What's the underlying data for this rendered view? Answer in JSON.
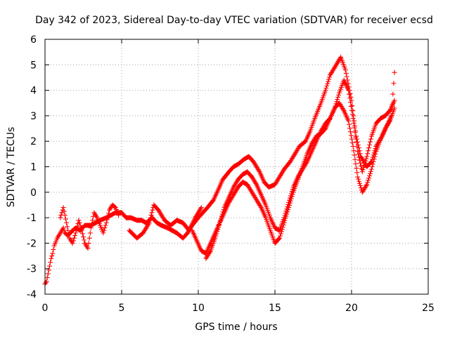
{
  "chart_data": {
    "type": "scatter",
    "title": "Day 342 of 2023, Sidereal Day-to-day VTEC variation (SDTVAR) for receiver ecsd",
    "xlabel": "GPS time / hours",
    "ylabel": "SDTVAR / TECUs",
    "xlim": [
      0,
      25
    ],
    "ylim": [
      -4,
      6
    ],
    "xticks": [
      "0",
      "5",
      "10",
      "15",
      "20",
      "25"
    ],
    "yticks": [
      "-4",
      "-3",
      "-2",
      "-1",
      "0",
      "1",
      "2",
      "3",
      "4",
      "5",
      "6"
    ],
    "grid": true,
    "marker": "+",
    "color": "#ff0000",
    "series": [
      {
        "x": [
          0.0,
          0.1,
          0.2,
          0.3,
          0.4,
          0.5,
          0.6,
          0.8,
          1.0,
          1.2,
          1.3,
          1.5,
          1.8,
          2.0,
          2.3,
          2.6,
          3.0,
          3.3,
          3.6,
          4.0,
          4.3,
          4.6,
          5.0,
          5.3,
          5.6,
          6.0,
          6.3,
          6.6,
          7.0,
          7.3,
          7.6,
          8.0,
          8.3,
          8.6,
          9.0,
          9.3,
          9.6,
          10.0,
          10.3,
          10.6,
          11.0,
          11.3,
          11.6,
          12.0,
          12.3,
          12.6,
          13.0,
          13.3,
          13.6,
          14.0,
          14.3,
          14.6,
          15.0,
          15.3,
          15.6,
          16.0,
          16.3,
          16.6,
          17.0,
          17.3,
          17.6,
          18.0,
          18.3,
          18.6,
          19.0,
          19.3,
          19.6,
          20.0,
          20.3,
          20.6,
          21.0,
          21.3,
          21.6,
          22.0,
          22.3,
          22.6,
          22.8
        ],
        "y": [
          -3.6,
          -3.5,
          -3.2,
          -2.9,
          -2.6,
          -2.4,
          -2.1,
          -1.8,
          -1.6,
          -1.4,
          -1.6,
          -1.7,
          -1.5,
          -1.4,
          -1.5,
          -1.3,
          -1.3,
          -1.2,
          -1.1,
          -1.0,
          -0.9,
          -0.8,
          -0.8,
          -1.0,
          -1.0,
          -1.1,
          -1.1,
          -1.2,
          -1.0,
          -1.2,
          -1.3,
          -1.4,
          -1.5,
          -1.6,
          -1.8,
          -1.6,
          -1.3,
          -1.0,
          -0.8,
          -0.6,
          -0.3,
          0.1,
          0.5,
          0.8,
          1.0,
          1.1,
          1.3,
          1.4,
          1.2,
          0.8,
          0.4,
          0.2,
          0.3,
          0.6,
          0.9,
          1.2,
          1.5,
          1.8,
          2.0,
          2.4,
          2.9,
          3.5,
          4.0,
          4.6,
          5.0,
          5.3,
          4.8,
          3.6,
          2.2,
          1.4,
          1.0,
          1.2,
          1.8,
          2.2,
          2.6,
          3.0,
          4.7
        ]
      },
      {
        "x": [
          9.6,
          9.9,
          10.2,
          10.5,
          10.8,
          11.1,
          11.4,
          11.7,
          12.0,
          12.3,
          12.6,
          12.9,
          13.2,
          13.5,
          13.8,
          14.1,
          14.4,
          14.7,
          15.0,
          15.3,
          15.6,
          15.9,
          16.2,
          16.5,
          16.8,
          17.1,
          17.4,
          17.7,
          18.0,
          18.3,
          18.6,
          18.9,
          19.2,
          19.5,
          19.8,
          20.1,
          20.4,
          20.7,
          21.0,
          21.3,
          21.6,
          21.9,
          22.2,
          22.5,
          22.8
        ],
        "y": [
          -1.5,
          -1.9,
          -2.3,
          -2.4,
          -2.0,
          -1.6,
          -1.2,
          -0.8,
          -0.4,
          -0.1,
          0.2,
          0.4,
          0.3,
          0.0,
          -0.3,
          -0.6,
          -1.0,
          -1.5,
          -2.0,
          -1.8,
          -1.2,
          -0.6,
          0.0,
          0.5,
          1.0,
          1.5,
          1.9,
          2.2,
          2.3,
          2.5,
          2.9,
          3.3,
          3.5,
          3.2,
          2.8,
          1.8,
          0.6,
          0.0,
          0.3,
          0.9,
          1.6,
          2.1,
          2.5,
          2.8,
          3.3
        ]
      },
      {
        "x": [
          10.5,
          10.8,
          11.1,
          11.4,
          11.7,
          12.0,
          12.3,
          12.6,
          12.9,
          13.2,
          13.5,
          13.8,
          14.1,
          14.4,
          14.7,
          15.0,
          15.3,
          15.6,
          15.9,
          16.2,
          16.5,
          16.8,
          17.1,
          17.4,
          17.7,
          18.0,
          18.3,
          18.6,
          18.9,
          19.2,
          19.5,
          19.8,
          20.1,
          20.4,
          20.7,
          21.0,
          21.3,
          21.6,
          21.9,
          22.2,
          22.5,
          22.8
        ],
        "y": [
          -2.6,
          -2.3,
          -1.8,
          -1.2,
          -0.6,
          -0.2,
          0.2,
          0.5,
          0.7,
          0.8,
          0.6,
          0.3,
          -0.1,
          -0.5,
          -1.0,
          -1.4,
          -1.5,
          -1.0,
          -0.4,
          0.2,
          0.6,
          0.9,
          1.2,
          1.6,
          2.0,
          2.4,
          2.7,
          2.9,
          3.3,
          3.9,
          4.4,
          4.0,
          2.9,
          1.6,
          0.8,
          1.4,
          2.2,
          2.7,
          2.9,
          3.0,
          3.2,
          3.6
        ]
      },
      {
        "x": [
          5.5,
          6.0,
          6.4,
          6.8,
          7.1,
          7.4,
          7.8,
          8.2,
          8.6,
          9.0,
          9.4,
          9.8,
          10.2
        ],
        "y": [
          -1.5,
          -1.8,
          -1.6,
          -1.2,
          -0.5,
          -0.7,
          -1.1,
          -1.3,
          -1.1,
          -1.2,
          -1.5,
          -1.0,
          -0.6
        ]
      },
      {
        "x": [
          1.0,
          1.2,
          1.4,
          1.6,
          1.8,
          2.0,
          2.2,
          2.4,
          2.6,
          2.8,
          3.0,
          3.2,
          3.4,
          3.6,
          3.8,
          4.0,
          4.2,
          4.4,
          4.6,
          4.8
        ],
        "y": [
          -1.0,
          -0.6,
          -1.2,
          -1.8,
          -2.0,
          -1.6,
          -1.1,
          -1.5,
          -2.0,
          -2.2,
          -1.4,
          -0.8,
          -1.0,
          -1.3,
          -1.6,
          -1.2,
          -0.7,
          -0.5,
          -0.6,
          -0.9
        ]
      }
    ]
  }
}
